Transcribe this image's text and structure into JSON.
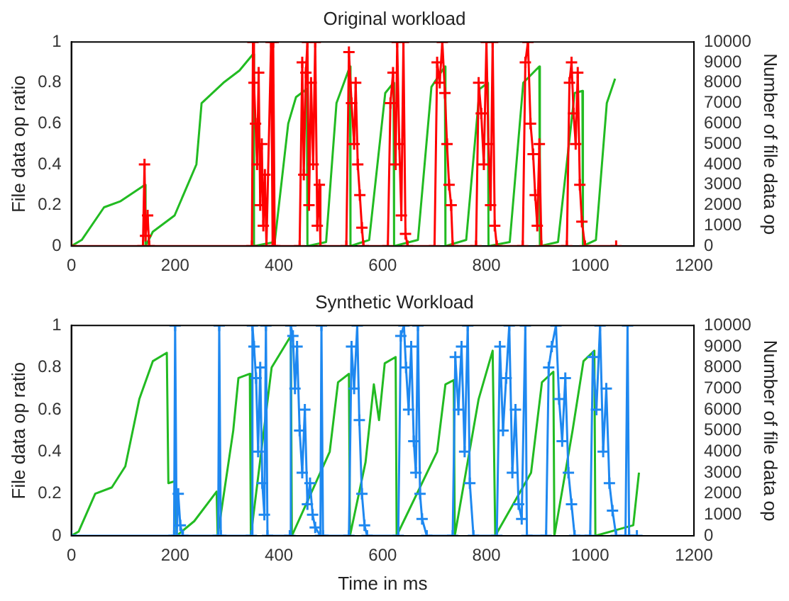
{
  "chart_data": [
    {
      "type": "line",
      "title": "Original workload",
      "ylabel": "File data op ratio",
      "y2label": "Number of file data op",
      "xlim": [
        0,
        1200
      ],
      "xticks": [
        0,
        200,
        400,
        600,
        800,
        1000,
        1200
      ],
      "ylim": [
        0,
        1
      ],
      "yticks": [
        0,
        0.2,
        0.4,
        0.6,
        0.8,
        1
      ],
      "y2lim": [
        0,
        10000
      ],
      "y2ticks": [
        0,
        1000,
        2000,
        3000,
        4000,
        5000,
        6000,
        7000,
        8000,
        9000,
        10000
      ],
      "grid": false,
      "legend": false,
      "series": [
        {
          "color": "#ff0000",
          "axis": "y2",
          "marker": "cross",
          "x": [
            0,
            138,
            141,
            143,
            147,
            150,
            348,
            350,
            352,
            355,
            358,
            361,
            364,
            367,
            370,
            373,
            376,
            385,
            388,
            389,
            392,
            440,
            445,
            448,
            452,
            455,
            458,
            462,
            466,
            470,
            474,
            478,
            480,
            530,
            535,
            540,
            545,
            548,
            552,
            556,
            560,
            563,
            610,
            615,
            620,
            625,
            628,
            632,
            636,
            640,
            644,
            648,
            700,
            705,
            710,
            715,
            720,
            724,
            728,
            732,
            735,
            780,
            785,
            790,
            795,
            800,
            804,
            808,
            812,
            816,
            820,
            870,
            875,
            880,
            885,
            890,
            894,
            898,
            902,
            906,
            955,
            960,
            964,
            968,
            972,
            976,
            980,
            984,
            990,
            1050
          ],
          "values": [
            0,
            0,
            4000,
            500,
            1500,
            0,
            0,
            10000,
            8000,
            6000,
            4000,
            8500,
            2000,
            5000,
            1000,
            3500,
            0,
            10000,
            0,
            10000,
            0,
            0,
            9000,
            3500,
            8500,
            10000,
            2000,
            8000,
            4000,
            10000,
            1000,
            3000,
            0,
            0,
            9500,
            7000,
            5000,
            8000,
            4000,
            2500,
            900,
            0,
            0,
            7000,
            8500,
            4000,
            10000,
            5000,
            1500,
            10000,
            600,
            0,
            0,
            9000,
            8000,
            10000,
            7500,
            5000,
            3000,
            2000,
            0,
            0,
            8000,
            6500,
            4000,
            10000,
            5000,
            2000,
            10000,
            1000,
            0,
            0,
            9000,
            10000,
            6000,
            4500,
            2500,
            1000,
            5000,
            0,
            0,
            8000,
            9000,
            6500,
            5000,
            8500,
            3000,
            1200,
            0,
            0
          ]
        },
        {
          "color": "#22bb22",
          "axis": "y",
          "marker": "none",
          "x": [
            0,
            20,
            63,
            95,
            142,
            143,
            157,
            199,
            241,
            251,
            293,
            324,
            350,
            352,
            392,
            418,
            433,
            454,
            455,
            491,
            511,
            537,
            538,
            574,
            605,
            621,
            622,
            668,
            694,
            720,
            721,
            761,
            787,
            803,
            804,
            845,
            871,
            902,
            903,
            938,
            970,
            985,
            986,
            1011,
            1032,
            1048
          ],
          "values": [
            0,
            0.03,
            0.19,
            0.22,
            0.3,
            0,
            0.07,
            0.15,
            0.4,
            0.7,
            0.8,
            0.86,
            0.94,
            0,
            0.02,
            0.6,
            0.73,
            0.77,
            0,
            0.02,
            0.7,
            0.88,
            0,
            0.03,
            0.75,
            0.8,
            0,
            0.03,
            0.78,
            0.88,
            0,
            0.03,
            0.77,
            0.8,
            0,
            0.02,
            0.8,
            0.88,
            0,
            0.02,
            0.75,
            0.76,
            0,
            0.03,
            0.7,
            0.82
          ]
        }
      ]
    },
    {
      "type": "line",
      "title": "Synthetic Workload",
      "xlabel": "Time in ms",
      "ylabel": "File data op ratio",
      "y2label": "Number of file data op",
      "xlim": [
        0,
        1200
      ],
      "xticks": [
        0,
        200,
        400,
        600,
        800,
        1000,
        1200
      ],
      "ylim": [
        0,
        1
      ],
      "yticks": [
        0,
        0.2,
        0.4,
        0.6,
        0.8,
        1
      ],
      "y2lim": [
        0,
        10000
      ],
      "y2ticks": [
        0,
        1000,
        2000,
        3000,
        4000,
        5000,
        6000,
        7000,
        8000,
        9000,
        10000
      ],
      "grid": false,
      "legend": false,
      "series": [
        {
          "color": "#1e88f0",
          "axis": "y2",
          "marker": "cross",
          "x": [
            0,
            198,
            200,
            203,
            206,
            210,
            215,
            283,
            285,
            288,
            347,
            349,
            352,
            356,
            360,
            364,
            368,
            372,
            375,
            378,
            421,
            423,
            427,
            431,
            435,
            440,
            445,
            450,
            455,
            460,
            465,
            470,
            480,
            482,
            485,
            535,
            540,
            545,
            551,
            555,
            560,
            565,
            570,
            630,
            635,
            641,
            645,
            650,
            655,
            660,
            664,
            668,
            672,
            676,
            685,
            735,
            740,
            746,
            752,
            758,
            764,
            768,
            775,
            820,
            826,
            832,
            838,
            844,
            850,
            856,
            862,
            868,
            875,
            878,
            915,
            920,
            926,
            934,
            940,
            946,
            952,
            958,
            964,
            970,
            1000,
            1005,
            1012,
            1019,
            1025,
            1031,
            1037,
            1043,
            1050,
            1068,
            1072,
            1075,
            1090
          ],
          "values": [
            0,
            0,
            10000,
            0,
            2000,
            500,
            0,
            0,
            10000,
            0,
            0,
            10000,
            9000,
            7500,
            4000,
            8000,
            2500,
            1000,
            10000,
            0,
            0,
            10000,
            9500,
            7000,
            9000,
            5000,
            3000,
            6000,
            1500,
            2500,
            1000,
            400,
            0,
            10000,
            0,
            0,
            9000,
            7000,
            10000,
            5500,
            2000,
            500,
            0,
            0,
            9500,
            10000,
            8000,
            6000,
            9000,
            4500,
            3000,
            10000,
            2000,
            800,
            0,
            0,
            8500,
            6000,
            9000,
            4000,
            10000,
            2500,
            0,
            0,
            9000,
            5000,
            7500,
            10000,
            3000,
            6000,
            1500,
            800,
            10000,
            0,
            0,
            8000,
            9000,
            10000,
            6500,
            4500,
            7500,
            3000,
            1500,
            0,
            0,
            8500,
            6000,
            10000,
            4000,
            7000,
            2500,
            1200,
            0,
            0,
            10000,
            0,
            0
          ]
        },
        {
          "color": "#22bb22",
          "axis": "y",
          "marker": "none",
          "x": [
            0,
            14,
            46,
            78,
            104,
            131,
            157,
            184,
            187,
            200,
            203,
            237,
            280,
            282,
            312,
            322,
            344,
            346,
            386,
            423,
            425,
            498,
            514,
            535,
            537,
            567,
            583,
            593,
            604,
            625,
            627,
            705,
            721,
            737,
            739,
            785,
            812,
            817,
            886,
            907,
            929,
            931,
            966,
            987,
            1008,
            1010,
            1083,
            1094
          ],
          "values": [
            0,
            0.02,
            0.2,
            0.23,
            0.33,
            0.65,
            0.83,
            0.87,
            0.25,
            0.26,
            0,
            0.07,
            0.21,
            0,
            0.5,
            0.75,
            0.77,
            0,
            0.8,
            0.95,
            0,
            0.4,
            0.73,
            0.77,
            0,
            0.35,
            0.72,
            0.55,
            0.82,
            0.85,
            0,
            0.4,
            0.72,
            0.74,
            0,
            0.65,
            0.88,
            0,
            0.3,
            0.73,
            0.78,
            0,
            0.5,
            0.83,
            0.88,
            0,
            0.05,
            0.3
          ]
        }
      ]
    }
  ]
}
